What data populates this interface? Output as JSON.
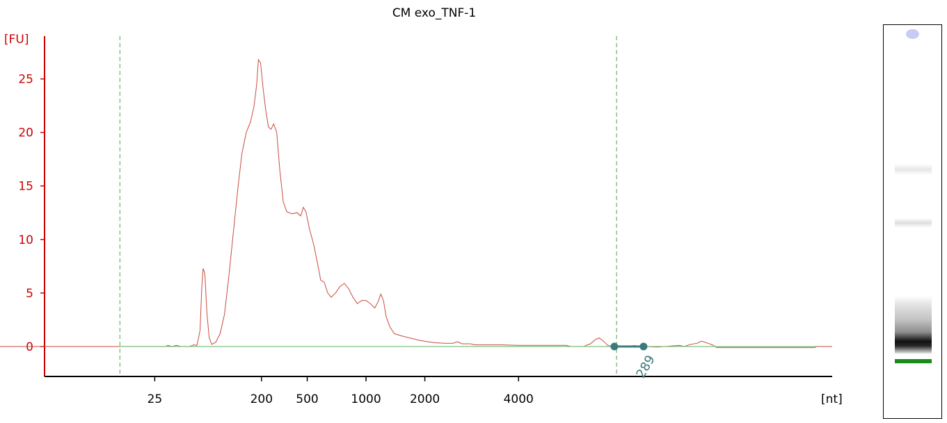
{
  "chart_data": {
    "type": "line",
    "title": "CM exo_TNF-1",
    "ylabel": "[FU]",
    "xlabel": "[nt]",
    "ylim": [
      -2.8,
      29
    ],
    "yticks": [
      0,
      5,
      10,
      15,
      20,
      25
    ],
    "xticks": [
      {
        "label": "25",
        "t": 24.5
      },
      {
        "label": "200",
        "t": 49.0
      },
      {
        "label": "500",
        "t": 59.5
      },
      {
        "label": "1000",
        "t": 73.0
      },
      {
        "label": "2000",
        "t": 86.5
      },
      {
        "label": "4000",
        "t": 108.0
      }
    ],
    "marker_lines_t": [
      16.5,
      130.5
    ],
    "grid": false,
    "series": [
      {
        "color": "#c84a3c",
        "points": [
          [
            -16.5,
            0
          ],
          [
            27.0,
            0
          ],
          [
            27.5,
            0.1
          ],
          [
            28.5,
            0
          ],
          [
            29.5,
            0.1
          ],
          [
            30.5,
            0
          ],
          [
            32.5,
            0
          ],
          [
            33.5,
            0.15
          ],
          [
            34.2,
            0.1
          ],
          [
            34.9,
            1.5
          ],
          [
            35.3,
            5.5
          ],
          [
            35.6,
            7.3
          ],
          [
            36.0,
            6.8
          ],
          [
            36.5,
            3.0
          ],
          [
            37.0,
            0.8
          ],
          [
            37.6,
            0.2
          ],
          [
            38.5,
            0.4
          ],
          [
            39.5,
            1.2
          ],
          [
            40.5,
            3.0
          ],
          [
            41.5,
            6.5
          ],
          [
            42.5,
            10.5
          ],
          [
            43.5,
            14.5
          ],
          [
            44.5,
            18.0
          ],
          [
            45.5,
            20.0
          ],
          [
            46.5,
            21.0
          ],
          [
            47.3,
            22.5
          ],
          [
            47.9,
            24.5
          ],
          [
            48.3,
            26.8
          ],
          [
            48.8,
            26.5
          ],
          [
            49.4,
            24.0
          ],
          [
            50.0,
            22.0
          ],
          [
            50.6,
            20.5
          ],
          [
            51.2,
            20.3
          ],
          [
            51.8,
            20.8
          ],
          [
            52.5,
            20.0
          ],
          [
            53.2,
            16.5
          ],
          [
            54.0,
            13.5
          ],
          [
            54.8,
            12.6
          ],
          [
            56.0,
            12.4
          ],
          [
            57.2,
            12.5
          ],
          [
            58.0,
            12.2
          ],
          [
            58.6,
            13.0
          ],
          [
            59.2,
            12.6
          ],
          [
            60.0,
            11.0
          ],
          [
            61.0,
            9.5
          ],
          [
            62.0,
            7.5
          ],
          [
            62.6,
            6.2
          ],
          [
            63.4,
            6.0
          ],
          [
            64.2,
            5.0
          ],
          [
            65.0,
            4.6
          ],
          [
            66.0,
            5.0
          ],
          [
            67.0,
            5.6
          ],
          [
            68.0,
            5.9
          ],
          [
            69.0,
            5.4
          ],
          [
            70.0,
            4.6
          ],
          [
            71.0,
            4.0
          ],
          [
            72.0,
            4.3
          ],
          [
            73.0,
            4.3
          ],
          [
            74.0,
            4.0
          ],
          [
            75.0,
            3.6
          ],
          [
            75.8,
            4.2
          ],
          [
            76.4,
            4.9
          ],
          [
            77.0,
            4.3
          ],
          [
            77.6,
            2.8
          ],
          [
            78.5,
            1.8
          ],
          [
            79.5,
            1.2
          ],
          [
            81.0,
            1.0
          ],
          [
            83.0,
            0.8
          ],
          [
            85.0,
            0.6
          ],
          [
            87.0,
            0.45
          ],
          [
            89.0,
            0.35
          ],
          [
            91.0,
            0.3
          ],
          [
            93.0,
            0.3
          ],
          [
            94.0,
            0.45
          ],
          [
            95.0,
            0.25
          ],
          [
            97.0,
            0.25
          ],
          [
            98.0,
            0.15
          ],
          [
            100.0,
            0.15
          ],
          [
            104.0,
            0.15
          ],
          [
            108.0,
            0.1
          ],
          [
            112.0,
            0.1
          ],
          [
            119.0,
            0.1
          ],
          [
            120.0,
            0
          ],
          [
            123.0,
            0
          ],
          [
            123.5,
            0.1
          ],
          [
            124.5,
            0.25
          ],
          [
            125.5,
            0.6
          ],
          [
            126.5,
            0.8
          ],
          [
            127.5,
            0.5
          ],
          [
            128.5,
            0.1
          ],
          [
            129.5,
            0
          ],
          [
            134.0,
            0
          ],
          [
            134.5,
            0.1
          ],
          [
            135.5,
            0
          ],
          [
            136.5,
            0
          ],
          [
            140.0,
            -0.05
          ],
          [
            145.0,
            0.1
          ],
          [
            146.0,
            0
          ],
          [
            147.5,
            0.2
          ],
          [
            149.0,
            0.3
          ],
          [
            150.0,
            0.5
          ],
          [
            151.5,
            0.3
          ],
          [
            152.5,
            0.15
          ],
          [
            153.5,
            -0.1
          ],
          [
            155.0,
            -0.1
          ],
          [
            160.0,
            -0.1
          ],
          [
            170.0,
            -0.1
          ],
          [
            176.0,
            -0.1
          ],
          [
            176.5,
            0
          ],
          [
            180.0,
            0
          ]
        ]
      },
      {
        "color": "#7cc07c",
        "points": [
          [
            16.5,
            0
          ],
          [
            176.5,
            0
          ]
        ]
      }
    ],
    "annotation": {
      "label": "289",
      "t_start": 130.0,
      "t_end": 136.7,
      "y": 0
    }
  },
  "colors": {
    "axis": "#cc0000",
    "baseline": "#7cc07c",
    "trace": "#c84a3c",
    "marker": "#3b7a7a",
    "dashed": "#5c9a5c",
    "gel_band": "#1a8a1a"
  }
}
